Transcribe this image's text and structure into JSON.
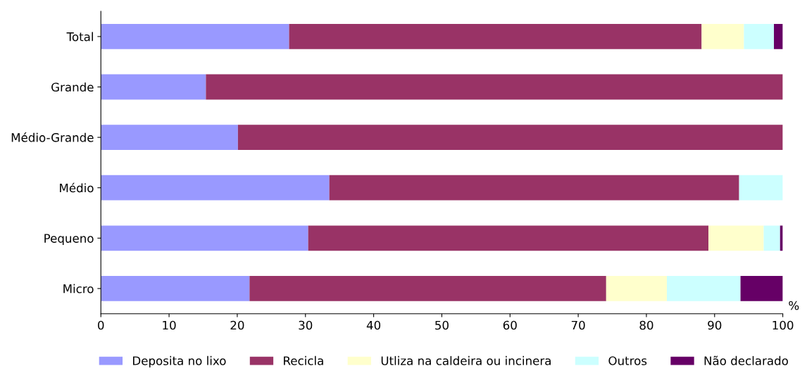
{
  "chart_data": {
    "type": "bar",
    "orientation": "horizontal",
    "stacked": true,
    "categories": [
      "Total",
      "Grande",
      "Médio-Grande",
      "Médio",
      "Pequeno",
      "Micro"
    ],
    "series": [
      {
        "name": "Deposita no lixo",
        "color": "#9999ff",
        "values": [
          27.6,
          15.4,
          20.1,
          33.5,
          30.4,
          21.8
        ]
      },
      {
        "name": "Recicla",
        "color": "#993366",
        "values": [
          60.5,
          84.6,
          79.9,
          60.1,
          58.7,
          52.3
        ]
      },
      {
        "name": "Utliza na caldeira ou incinera",
        "color": "#ffffcc",
        "values": [
          6.2,
          0,
          0,
          0,
          8.1,
          8.9
        ]
      },
      {
        "name": "Outros",
        "color": "#ccffff",
        "values": [
          4.4,
          0,
          0,
          6.4,
          2.4,
          10.8
        ]
      },
      {
        "name": "Não declarado",
        "color": "#660066",
        "values": [
          1.3,
          0,
          0,
          0,
          0.4,
          6.2
        ]
      }
    ],
    "xlabel": "%",
    "xlim": [
      0,
      100
    ],
    "xticks": [
      0,
      10,
      20,
      30,
      40,
      50,
      60,
      70,
      80,
      90,
      100
    ],
    "grid": false,
    "legend": "bottom"
  }
}
